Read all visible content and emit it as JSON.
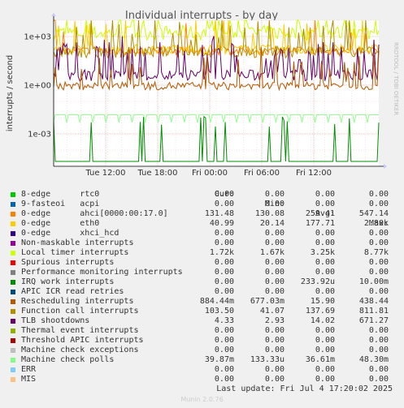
{
  "chart_data": {
    "type": "line",
    "title": "Individual interrupts - by day",
    "ylabel": "interrupts / second",
    "side_text": "RRDTOOL / TOBI OETIKER",
    "y_scale": "log",
    "ylim": [
      1e-05,
      10000
    ],
    "y_ticks": [
      {
        "label": "1e+03",
        "value": 1000
      },
      {
        "label": "1e+00",
        "value": 1
      },
      {
        "label": "1e-03",
        "value": 0.001
      }
    ],
    "x_range": [
      "Jul 3 08:30",
      "Jul 4 17:20"
    ],
    "x_ticks": [
      {
        "label": "Tue 12:00",
        "pos": 0.16
      },
      {
        "label": "Tue 18:00",
        "pos": 0.32
      },
      {
        "label": "Fri 00:00",
        "pos": 0.48
      },
      {
        "label": "Fri 06:00",
        "pos": 0.64
      },
      {
        "label": "Fri 12:00",
        "pos": 0.8
      }
    ],
    "series": [
      {
        "name": "Local timer interrupts",
        "color": "#ccff00",
        "base": 1700,
        "noise": 0.45,
        "spikes": 0.1
      },
      {
        "name": "0-edge ahci[0000:00:17.0]",
        "color": "#ff8000",
        "base": 131,
        "noise": 0.25,
        "spikes": 0.05
      },
      {
        "name": "0-edge eth0",
        "color": "#ffcc00",
        "base": 160,
        "noise": 0.3,
        "spikes": 0.05
      },
      {
        "name": "Function call interrupts",
        "color": "#b38f00",
        "base": 110,
        "noise": 0.35,
        "spikes": 0.2
      },
      {
        "name": "TLB shootdowns",
        "color": "#660066",
        "base": 4,
        "noise": 0.35,
        "spikes": 0.22
      },
      {
        "name": "Rescheduling interrupts",
        "color": "#b35900",
        "base": 0.9,
        "noise": 0.25,
        "spikes": 0.12
      },
      {
        "name": "Machine check polls",
        "color": "#8fff8f",
        "base": 0.015,
        "noise": 0.0,
        "spikes": 0.0,
        "pattern": "comb"
      },
      {
        "name": "IRQ work interrupts",
        "color": "#008f00",
        "base": 2e-05,
        "noise": 0.0,
        "spikes": 0.0,
        "pattern": "bursts"
      }
    ]
  },
  "legend": {
    "headers": {
      "cur": "Cur:",
      "min": "Min:",
      "avg": "Avg:",
      "max": "Max:"
    },
    "rows": [
      {
        "name": "8-edge      rtc0",
        "color": "#00cc00",
        "cur": "0.00",
        "min": "0.00",
        "avg": "0.00",
        "max": "0.00"
      },
      {
        "name": "9-fasteoi   acpi",
        "color": "#0066b3",
        "cur": "0.00",
        "min": "0.00",
        "avg": "0.00",
        "max": "0.00"
      },
      {
        "name": "0-edge      ahci[0000:00:17.0]",
        "color": "#ff8000",
        "cur": "131.48",
        "min": "130.08",
        "avg": "259.41",
        "max": "547.14"
      },
      {
        "name": "0-edge      eth0",
        "color": "#ffcc00",
        "cur": "40.99",
        "min": "20.14",
        "avg": "177.71",
        "max": "2.80k"
      },
      {
        "name": "0-edge      xhci_hcd",
        "color": "#330099",
        "cur": "0.00",
        "min": "0.00",
        "avg": "0.00",
        "max": "0.00"
      },
      {
        "name": "Non-maskable interrupts",
        "color": "#990099",
        "cur": "0.00",
        "min": "0.00",
        "avg": "0.00",
        "max": "0.00"
      },
      {
        "name": "Local timer interrupts",
        "color": "#ccff00",
        "cur": "1.72k",
        "min": "1.67k",
        "avg": "3.25k",
        "max": "8.77k"
      },
      {
        "name": "Spurious interrupts",
        "color": "#ff0000",
        "cur": "0.00",
        "min": "0.00",
        "avg": "0.00",
        "max": "0.00"
      },
      {
        "name": "Performance monitoring interrupts",
        "color": "#808080",
        "cur": "0.00",
        "min": "0.00",
        "avg": "0.00",
        "max": "0.00"
      },
      {
        "name": "IRQ work interrupts",
        "color": "#008f00",
        "cur": "0.00",
        "min": "0.00",
        "avg": "233.92u",
        "max": "10.00m"
      },
      {
        "name": "APIC ICR read retries",
        "color": "#00487d",
        "cur": "0.00",
        "min": "0.00",
        "avg": "0.00",
        "max": "0.00"
      },
      {
        "name": "Rescheduling interrupts",
        "color": "#b35a00",
        "cur": "884.44m",
        "min": "677.03m",
        "avg": "15.90",
        "max": "438.44"
      },
      {
        "name": "Function call interrupts",
        "color": "#b38f00",
        "cur": "103.50",
        "min": "41.07",
        "avg": "137.69",
        "max": "811.81"
      },
      {
        "name": "TLB shootdowns",
        "color": "#6b006b",
        "cur": "4.33",
        "min": "2.93",
        "avg": "14.02",
        "max": "671.27"
      },
      {
        "name": "Thermal event interrupts",
        "color": "#8fb300",
        "cur": "0.00",
        "min": "0.00",
        "avg": "0.00",
        "max": "0.00"
      },
      {
        "name": "Threshold APIC interrupts",
        "color": "#b30000",
        "cur": "0.00",
        "min": "0.00",
        "avg": "0.00",
        "max": "0.00"
      },
      {
        "name": "Machine check exceptions",
        "color": "#bebebe",
        "cur": "0.00",
        "min": "0.00",
        "avg": "0.00",
        "max": "0.00"
      },
      {
        "name": "Machine check polls",
        "color": "#80ff80",
        "cur": "39.87m",
        "min": "133.33u",
        "avg": "36.61m",
        "max": "48.30m"
      },
      {
        "name": "ERR",
        "color": "#80c9ff",
        "cur": "0.00",
        "min": "0.00",
        "avg": "0.00",
        "max": "0.00"
      },
      {
        "name": "MIS",
        "color": "#ffc080",
        "cur": "0.00",
        "min": "0.00",
        "avg": "0.00",
        "max": "0.00"
      }
    ]
  },
  "footer": {
    "last_update": "Last update: Fri Jul  4 17:20:02 2025",
    "generator": "Munin 2.0.76"
  }
}
